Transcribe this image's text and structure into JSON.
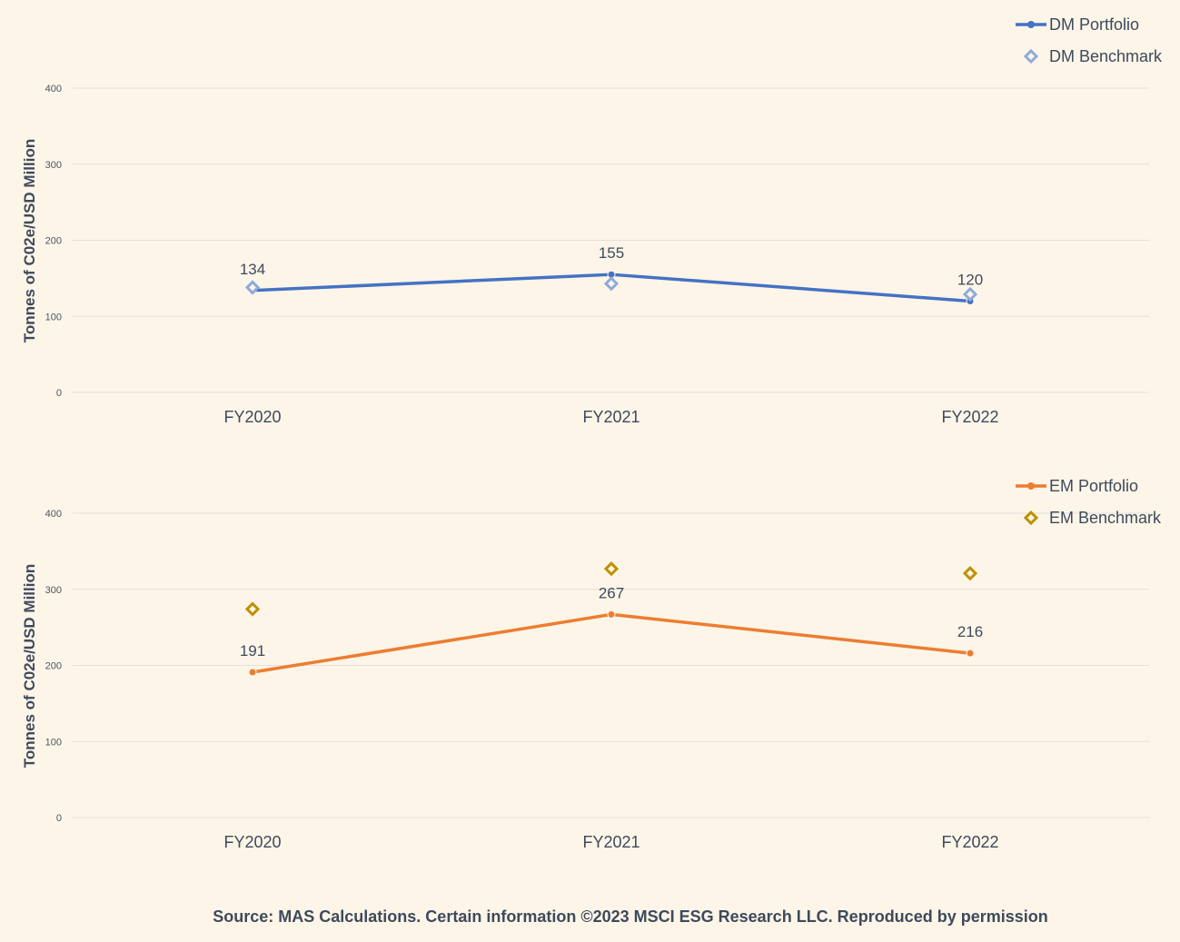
{
  "chart_data": [
    {
      "type": "line",
      "categories": [
        "FY2020",
        "FY2021",
        "FY2022"
      ],
      "ylabel": "Tonnes of C02e/USD Million",
      "ylim": [
        0,
        400
      ],
      "yticks": [
        0,
        100,
        200,
        300,
        400
      ],
      "grid": true,
      "legend_position": "top-right",
      "series": [
        {
          "name": "DM Portfolio",
          "style": "line",
          "color": "#4472c4",
          "values": [
            134,
            155,
            120
          ],
          "labels": [
            "134",
            "155",
            "120"
          ]
        },
        {
          "name": "DM Benchmark",
          "style": "marker",
          "marker": "diamond",
          "color": "#8eaadb",
          "values": [
            138,
            143,
            129
          ]
        }
      ]
    },
    {
      "type": "line",
      "categories": [
        "FY2020",
        "FY2021",
        "FY2022"
      ],
      "ylabel": "Tonnes  of C02e/USD Million",
      "ylim": [
        0,
        400
      ],
      "yticks": [
        0,
        100,
        200,
        300,
        400
      ],
      "grid": true,
      "legend_position": "top-right",
      "series": [
        {
          "name": "EM Portfolio",
          "style": "line",
          "color": "#ed7d31",
          "values": [
            191,
            267,
            216
          ],
          "labels": [
            "191",
            "267",
            "216"
          ]
        },
        {
          "name": "EM Benchmark",
          "style": "marker",
          "marker": "diamond",
          "color": "#bf9000",
          "values": [
            274,
            327,
            321
          ]
        }
      ]
    }
  ],
  "source_note": "Source: MAS Calculations. Certain information ©2023 MSCI ESG Research LLC. Reproduced by permission"
}
